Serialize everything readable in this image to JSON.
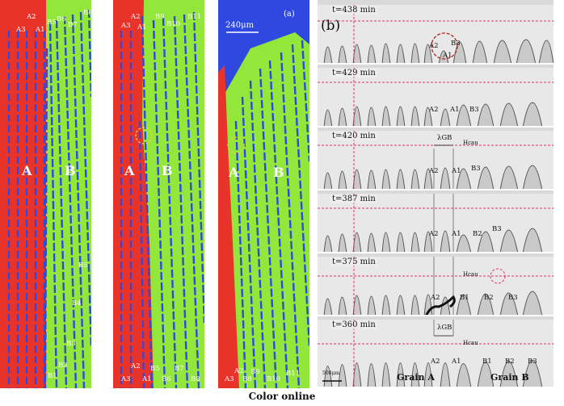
{
  "panel_a": {
    "label": "(a)",
    "scale_bar": "240μm",
    "frame1": {
      "labels_top": [
        "A2",
        "A3",
        "A1",
        "B5",
        "B6",
        "B7",
        "B8"
      ],
      "grain_a": "A",
      "grain_b": "B",
      "labels_side": [
        "B5",
        "B4",
        "B3",
        "B2",
        "B1"
      ]
    },
    "frame2": {
      "labels_top": [
        "A2",
        "A3",
        "A1",
        "B9",
        "B10",
        "B11"
      ],
      "grain_a": "A",
      "grain_b": "B",
      "labels_bottom": [
        "A2",
        "A3",
        "A1",
        "B5",
        "B6",
        "B7",
        "B8"
      ]
    },
    "frame3": {
      "grain_a": "A",
      "grain_b": "B",
      "labels_bottom": [
        "A2",
        "A3",
        "B9",
        "B8",
        "B10",
        "B11"
      ]
    }
  },
  "panel_b": {
    "label": "(b)",
    "frames": [
      {
        "time": "t=438 min",
        "labels": [
          "A2",
          "B3",
          "A1"
        ]
      },
      {
        "time": "t=429 min",
        "labels": [
          "A2",
          "A1",
          "B3"
        ]
      },
      {
        "time": "t=420 min",
        "labels": [
          "A2",
          "A1",
          "B3"
        ],
        "lambda": "λGB",
        "h": "Hcau"
      },
      {
        "time": "t=387 min",
        "labels": [
          "A2",
          "A1",
          "B2",
          "B3"
        ]
      },
      {
        "time": "t=375 min",
        "labels": [
          "A2",
          "B1",
          "B2",
          "B3"
        ],
        "h": "Hcau"
      },
      {
        "time": "t=360 min",
        "labels": [
          "A2",
          "A1",
          "B1",
          "B2",
          "B3"
        ],
        "lambda": "λGB",
        "h": "Hcau",
        "grain_a": "Grain A",
        "grain_b": "Grain B",
        "scale": "500μm"
      }
    ]
  },
  "caption": "Color online",
  "colors": {
    "grain_a": "#e8332a",
    "grain_b": "#93e63a",
    "liquid": "#2f49e0",
    "marker_line": "#e0306a"
  }
}
